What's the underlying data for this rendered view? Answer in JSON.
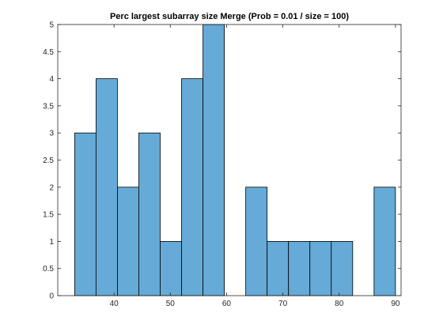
{
  "chart_data": {
    "type": "bar",
    "title": "Perc largest subarray size Merge (Prob = 0.01 / size = 100)",
    "xlabel": "",
    "ylabel": "",
    "xlim": [
      30,
      91
    ],
    "ylim": [
      0,
      5
    ],
    "x_ticks": [
      40,
      50,
      60,
      70,
      80,
      90
    ],
    "y_ticks": [
      0,
      0.5,
      1,
      1.5,
      2,
      2.5,
      3,
      3.5,
      4,
      4.5,
      5
    ],
    "bin_edges": [
      33.0,
      36.8,
      40.6,
      44.4,
      48.2,
      52.0,
      55.8,
      59.6,
      63.4,
      67.2,
      71.0,
      74.8,
      78.6,
      82.4,
      86.2,
      90.0
    ],
    "values": [
      3,
      4,
      2,
      3,
      1,
      4,
      5,
      0,
      2,
      1,
      1,
      1,
      1,
      0,
      2
    ],
    "bar_color": "#66aad7",
    "edge_color": "#000000",
    "grid": false,
    "box": true
  }
}
